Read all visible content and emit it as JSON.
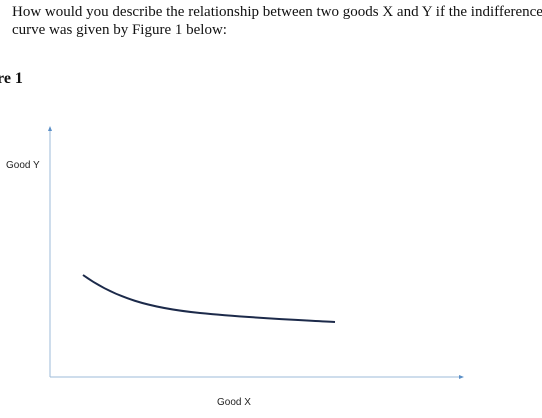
{
  "question": {
    "lines": [
      "How would you describe the relationship between two goods X and Y if the indifference",
      "curve was given by Figure 1 below:"
    ]
  },
  "figure": {
    "label": "re 1",
    "y_axis_label": "Good Y",
    "x_axis_label": "Good X"
  }
}
